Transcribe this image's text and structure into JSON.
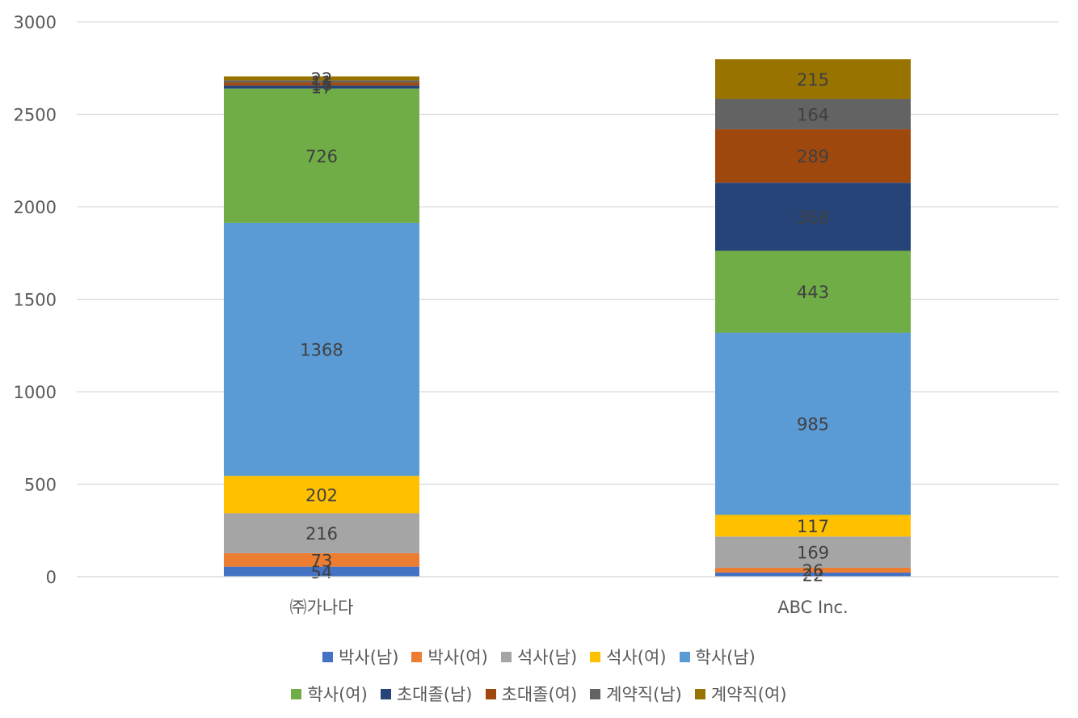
{
  "chart_data": {
    "type": "bar",
    "stacked": true,
    "categories": [
      "㈜가나다",
      "ABC Inc."
    ],
    "series": [
      {
        "name": "박사(남)",
        "color": "#4472C4",
        "values": [
          54,
          22
        ]
      },
      {
        "name": "박사(여)",
        "color": "#ED7D31",
        "values": [
          73,
          26
        ]
      },
      {
        "name": "석사(남)",
        "color": "#A5A5A5",
        "values": [
          216,
          169
        ]
      },
      {
        "name": "석사(여)",
        "color": "#FFC000",
        "values": [
          202,
          117
        ]
      },
      {
        "name": "학사(남)",
        "color": "#5B9BD5",
        "values": [
          1368,
          985
        ]
      },
      {
        "name": "학사(여)",
        "color": "#70AD47",
        "values": [
          726,
          443
        ]
      },
      {
        "name": "초대졸(남)",
        "color": "#264478",
        "values": [
          17,
          368
        ]
      },
      {
        "name": "초대졸(여)",
        "color": "#9E480E",
        "values": [
          16,
          289
        ]
      },
      {
        "name": "계약직(남)",
        "color": "#636363",
        "values": [
          11,
          164
        ]
      },
      {
        "name": "계약직(여)",
        "color": "#997300",
        "values": [
          22,
          215
        ]
      }
    ],
    "ylim": [
      0,
      3000
    ],
    "yticks": [
      0,
      500,
      1000,
      1500,
      2000,
      2500,
      3000
    ],
    "grid": true,
    "legend_position": "bottom",
    "title": "",
    "xlabel": "",
    "ylabel": ""
  }
}
